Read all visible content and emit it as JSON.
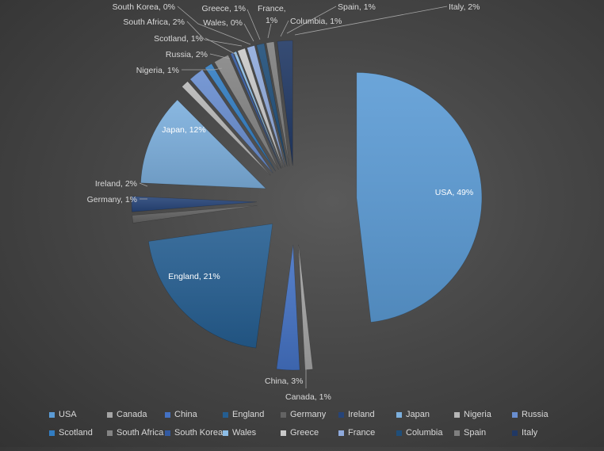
{
  "chart_data": {
    "type": "pie",
    "exploded": true,
    "title": "",
    "slices": [
      {
        "name": "USA",
        "value": 49,
        "label": "USA, 49%",
        "color": "#5b9bd5"
      },
      {
        "name": "Canada",
        "value": 1,
        "label": "Canada, 1%",
        "color": "#a5a5a5"
      },
      {
        "name": "China",
        "value": 3,
        "label": "China, 3%",
        "color": "#4472c4"
      },
      {
        "name": "England",
        "value": 21,
        "label": "England, 21%",
        "color": "#255e91"
      },
      {
        "name": "Germany",
        "value": 1,
        "label": "Germany, 1%",
        "color": "#636363"
      },
      {
        "name": "Ireland",
        "value": 2,
        "label": "Ireland, 2%",
        "color": "#264478"
      },
      {
        "name": "Japan",
        "value": 12,
        "label": "Japan, 12%",
        "color": "#7cafdd"
      },
      {
        "name": "Nigeria",
        "value": 1,
        "label": "Nigeria, 1%",
        "color": "#b7b7b7"
      },
      {
        "name": "Russia",
        "value": 2,
        "label": "Russia, 2%",
        "color": "#698ed0"
      },
      {
        "name": "Scotland",
        "value": 1,
        "label": "Scotland, 1%",
        "color": "#327dc2"
      },
      {
        "name": "South Africa",
        "value": 2,
        "label": "South Africa, 2%",
        "color": "#848484"
      },
      {
        "name": "South Korea",
        "value": 0,
        "label": "South Korea, 0%",
        "color": "#335aa1"
      },
      {
        "name": "Wales",
        "value": 0,
        "label": "Wales, 0%",
        "color": "#8cbde6"
      },
      {
        "name": "Greece",
        "value": 1,
        "label": "Greece, 1%",
        "color": "#c9c9c9"
      },
      {
        "name": "France",
        "value": 1,
        "label": "France, 1%",
        "color": "#8faadc"
      },
      {
        "name": "Columbia",
        "value": 1,
        "label": "Columbia, 1%",
        "color": "#1f4e79"
      },
      {
        "name": "Spain",
        "value": 1,
        "label": "Spain, 1%",
        "color": "#7f7f7f"
      },
      {
        "name": "Italy",
        "value": 2,
        "label": "Italy, 2%",
        "color": "#203864"
      }
    ],
    "legend": {
      "position": "bottom",
      "entries": [
        "USA",
        "Canada",
        "China",
        "England",
        "Germany",
        "Ireland",
        "Japan",
        "Nigeria",
        "Russia",
        "Scotland",
        "South Africa",
        "South Korea",
        "Wales",
        "Greece",
        "France",
        "Columbia",
        "Spain",
        "Italy"
      ]
    }
  }
}
